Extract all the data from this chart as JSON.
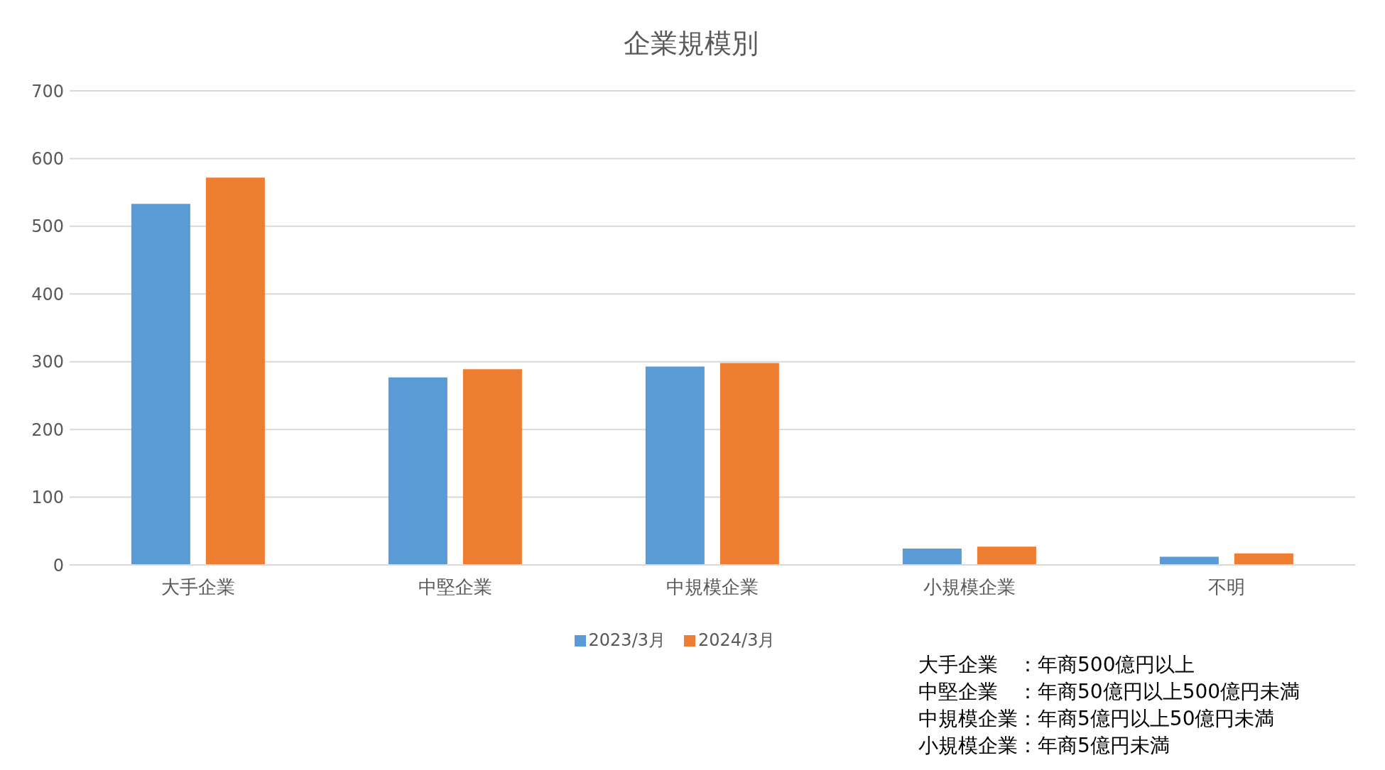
{
  "chart_data": {
    "type": "bar",
    "title": "企業規模別",
    "categories": [
      "大手企業",
      "中堅企業",
      "中規模企業",
      "小規模企業",
      "不明"
    ],
    "series": [
      {
        "name": "2023/3月",
        "color": "#5b9bd5",
        "values": [
          533,
          277,
          293,
          24,
          12
        ]
      },
      {
        "name": "2024/3月",
        "color": "#ed7d31",
        "values": [
          572,
          289,
          298,
          27,
          17
        ]
      }
    ],
    "ylim": [
      0,
      700
    ],
    "yticks": [
      0,
      100,
      200,
      300,
      400,
      500,
      600,
      700
    ],
    "grid": "y",
    "legend": "bottom",
    "annotations": [
      "大手企業　：年商500億円以上",
      "中堅企業　：年商50億円以上500億円未満",
      "中規模企業：年商5億円以上50億円未満",
      "小規模企業：年商5億円未満"
    ]
  }
}
